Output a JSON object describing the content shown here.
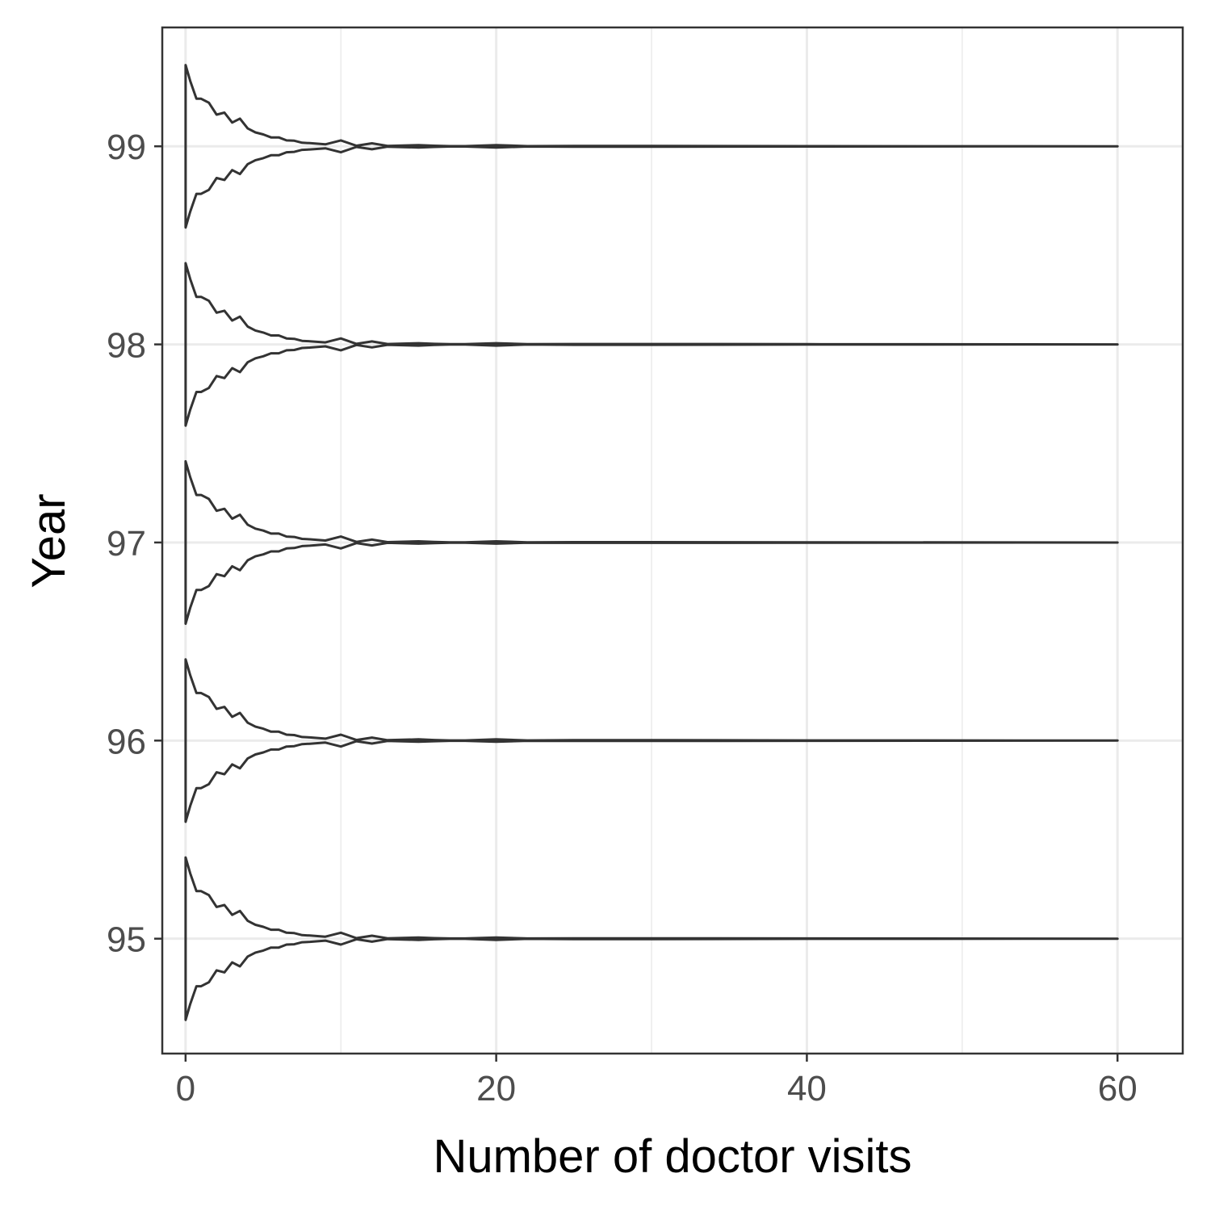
{
  "chart_data": {
    "type": "violin",
    "title": "",
    "xlabel": "Number of doctor visits",
    "ylabel": "Year",
    "xlim": [
      -1.5,
      64.2
    ],
    "ylim": [
      94.42,
      99.6
    ],
    "x_ticks": [
      0,
      20,
      40,
      60
    ],
    "x_tick_labels": [
      "0",
      "20",
      "40",
      "60"
    ],
    "x_minor_ticks": [
      10,
      30,
      50
    ],
    "y_ticks": [
      95,
      96,
      97,
      98,
      99
    ],
    "y_tick_labels": [
      "95",
      "96",
      "97",
      "98",
      "99"
    ],
    "grid": true,
    "legend": "none",
    "colors": {
      "line": "#333333",
      "grid": "#ebebeb",
      "panel_border": "#333333",
      "background": "#ffffff"
    },
    "series": [
      {
        "year": 95,
        "x_range": [
          0,
          60
        ]
      },
      {
        "year": 96,
        "x_range": [
          0,
          60
        ]
      },
      {
        "year": 97,
        "x_range": [
          0,
          60
        ]
      },
      {
        "year": 98,
        "x_range": [
          0,
          60
        ]
      },
      {
        "year": 99,
        "x_range": [
          0,
          60
        ]
      }
    ],
    "violin_half_width_profile": {
      "x": [
        0,
        0.3,
        0.7,
        1.0,
        1.5,
        2.0,
        2.5,
        3.0,
        3.5,
        4.0,
        4.5,
        5.0,
        5.5,
        6.0,
        6.5,
        7.0,
        7.5,
        8.0,
        9.0,
        10.0,
        11.0,
        12.0,
        13.0,
        14.0,
        15.0,
        16.0,
        17.0,
        18.0,
        20.0,
        22.0,
        25.0,
        30.0,
        40.0,
        60.0
      ],
      "w": [
        0.41,
        0.33,
        0.24,
        0.24,
        0.22,
        0.16,
        0.17,
        0.12,
        0.14,
        0.09,
        0.07,
        0.06,
        0.045,
        0.045,
        0.03,
        0.028,
        0.018,
        0.016,
        0.01,
        0.03,
        0.003,
        0.015,
        0.002,
        0.004,
        0.006,
        0.003,
        0.001,
        0.001,
        0.006,
        0.001,
        0.002,
        0.002,
        0.001,
        0.0
      ]
    }
  }
}
